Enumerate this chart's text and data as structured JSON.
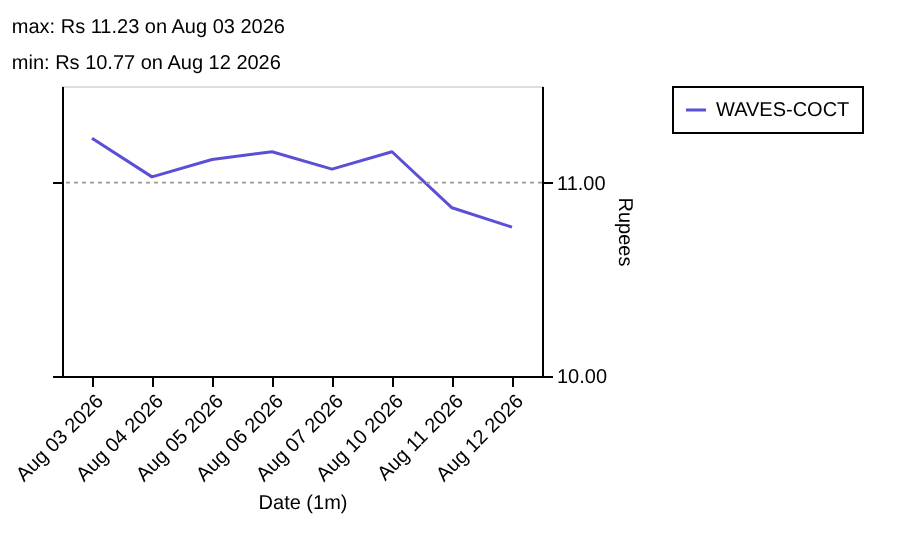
{
  "chart_data": {
    "type": "line",
    "annotations": [
      "max: Rs 11.23 on Aug 03 2026",
      "min: Rs 10.77 on Aug 12 2026"
    ],
    "xlabel": "Date (1m)",
    "ylabel": "Rupees",
    "categories": [
      "Aug 03 2026",
      "Aug 04 2026",
      "Aug 05 2026",
      "Aug 06 2026",
      "Aug 07 2026",
      "Aug 10 2026",
      "Aug 11 2026",
      "Aug 12 2026"
    ],
    "series": [
      {
        "name": "WAVES-COCT",
        "color": "#5b4fd6",
        "values": [
          11.23,
          11.03,
          11.12,
          11.16,
          11.07,
          11.16,
          10.87,
          10.77
        ]
      }
    ],
    "ylim": [
      10,
      11.5
    ],
    "yticks": [
      {
        "value": 10,
        "label": "10.00"
      },
      {
        "value": 11,
        "label": "11.00"
      }
    ],
    "ref_lines": [
      {
        "axis": "y",
        "value": 11,
        "color": "#999999",
        "line_style": "dotted"
      }
    ],
    "legend": "right",
    "grid": false,
    "marker": "none",
    "line_style": "solid"
  }
}
